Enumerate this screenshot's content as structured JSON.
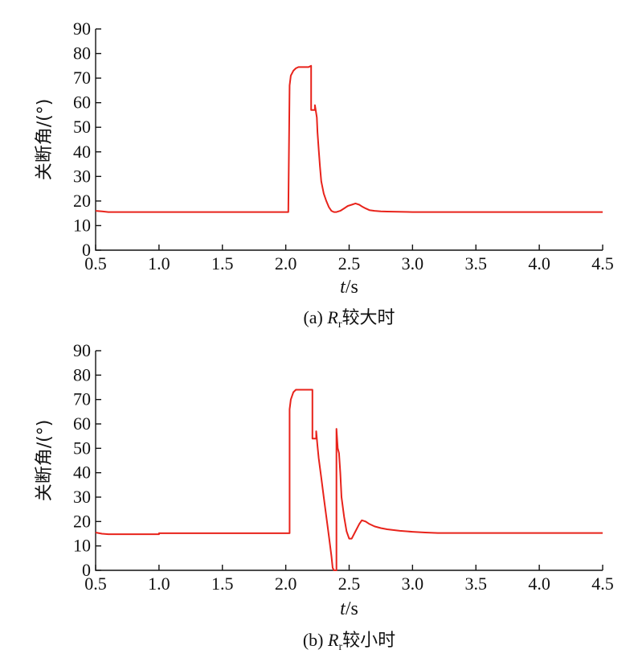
{
  "chart_data": [
    {
      "type": "line",
      "caption": {
        "prefix": "(a) ",
        "var": "R",
        "sub": "r",
        "suffix": "较大时"
      },
      "xlabel": {
        "var": "t",
        "unit": "/s"
      },
      "ylabel": "关断角/(°)",
      "xlim": [
        0.5,
        4.5
      ],
      "ylim": [
        0,
        90
      ],
      "xticks": [
        "0.5",
        "1.0",
        "1.5",
        "2.0",
        "2.5",
        "3.0",
        "3.5",
        "4.0",
        "4.5"
      ],
      "yticks": [
        "0",
        "10",
        "20",
        "30",
        "40",
        "50",
        "60",
        "70",
        "80",
        "90"
      ],
      "grid": false,
      "series": [
        {
          "color": "#e8231b",
          "x": [
            0.5,
            0.55,
            0.6,
            1.0,
            1.5,
            2.02,
            2.03,
            2.04,
            2.06,
            2.08,
            2.1,
            2.18,
            2.2,
            2.2,
            2.23,
            2.23,
            2.245,
            2.25,
            2.26,
            2.27,
            2.28,
            2.3,
            2.32,
            2.34,
            2.36,
            2.38,
            2.4,
            2.43,
            2.46,
            2.49,
            2.52,
            2.55,
            2.58,
            2.6,
            2.63,
            2.66,
            2.7,
            2.75,
            2.8,
            3.0,
            3.5,
            4.0,
            4.5
          ],
          "y": [
            16,
            15.8,
            15.5,
            15.5,
            15.5,
            15.5,
            67,
            71,
            73,
            74,
            74.5,
            74.5,
            75,
            57,
            57,
            59,
            54,
            48,
            41,
            34,
            28,
            23,
            20,
            17.5,
            16,
            15.5,
            15.5,
            16,
            17,
            18,
            18.5,
            19,
            18.5,
            17.8,
            17,
            16.3,
            16,
            15.8,
            15.7,
            15.5,
            15.5,
            15.5,
            15.5
          ]
        }
      ]
    },
    {
      "type": "line",
      "caption": {
        "prefix": "(b) ",
        "var": "R",
        "sub": "r",
        "suffix": "较小时"
      },
      "xlabel": {
        "var": "t",
        "unit": "/s"
      },
      "ylabel": "关断角/(°)",
      "xlim": [
        0.5,
        4.5
      ],
      "ylim": [
        0,
        90
      ],
      "xticks": [
        "0.5",
        "1.0",
        "1.5",
        "2.0",
        "2.5",
        "3.0",
        "3.5",
        "4.0",
        "4.5"
      ],
      "yticks": [
        "0",
        "10",
        "20",
        "30",
        "40",
        "50",
        "60",
        "70",
        "80",
        "90"
      ],
      "grid": false,
      "series": [
        {
          "color": "#e8231b",
          "x": [
            0.5,
            0.55,
            0.6,
            0.8,
            1.0,
            1.0,
            1.5,
            2.03,
            2.03,
            2.04,
            2.06,
            2.08,
            2.1,
            2.2,
            2.21,
            2.21,
            2.24,
            2.24,
            2.25,
            2.26,
            2.28,
            2.3,
            2.32,
            2.34,
            2.36,
            2.37,
            2.38,
            2.4,
            2.4,
            2.41,
            2.42,
            2.43,
            2.44,
            2.46,
            2.48,
            2.5,
            2.52,
            2.55,
            2.58,
            2.6,
            2.63,
            2.66,
            2.7,
            2.75,
            2.8,
            2.9,
            3.0,
            3.1,
            3.2,
            3.5,
            4.0,
            4.5
          ],
          "y": [
            15.5,
            15,
            14.8,
            14.8,
            14.8,
            15.2,
            15.2,
            15.2,
            66,
            70,
            73,
            74,
            74,
            74,
            74,
            54,
            54,
            57,
            51,
            46,
            38,
            30,
            22,
            14,
            6,
            1,
            0,
            0,
            58,
            50,
            48,
            40,
            30,
            22,
            16,
            13,
            13,
            16,
            19,
            20.5,
            20,
            19,
            18,
            17.3,
            16.8,
            16.2,
            15.8,
            15.5,
            15.3,
            15.3,
            15.3,
            15.3
          ]
        }
      ]
    }
  ]
}
